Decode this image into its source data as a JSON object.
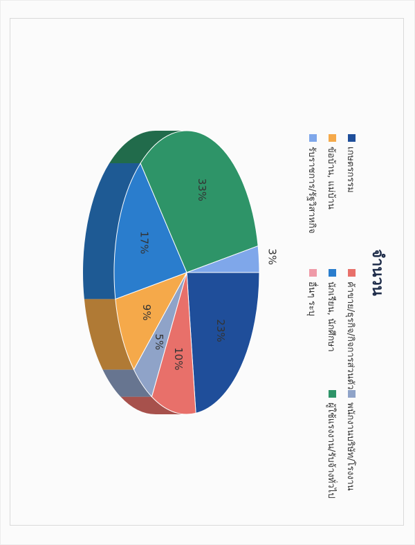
{
  "chart_data": {
    "type": "pie",
    "title": "จำนวน",
    "categories": [
      "เกษตรกรรม",
      "ค้าขาย/ธุรกิจ/กิจการส่วนตัว",
      "พนักงานบริษัท/โรงงาน",
      "ข้อบ้าน, แม่บ้าน",
      "นักเรียน, นักศึกษา",
      "ผู้ใช้แรงงาน/รับจ้างทั่วไป",
      "รับราชการ/รัฐวิสาหกิจ",
      "อื่นๆ ระบุ"
    ],
    "values": [
      23,
      10,
      5,
      9,
      17,
      33,
      3,
      0
    ],
    "data_labels": [
      "23%",
      "10%",
      "5%",
      "9%",
      "17%",
      "33%",
      "3%",
      ""
    ],
    "colors": [
      "#1f4e9a",
      "#e8706a",
      "#8fa3c8",
      "#f5a94a",
      "#2a7dcd",
      "#2e9468",
      "#7fa7ea",
      "#ef9aa8"
    ],
    "legend_position": "top",
    "style": "3d exploded"
  }
}
